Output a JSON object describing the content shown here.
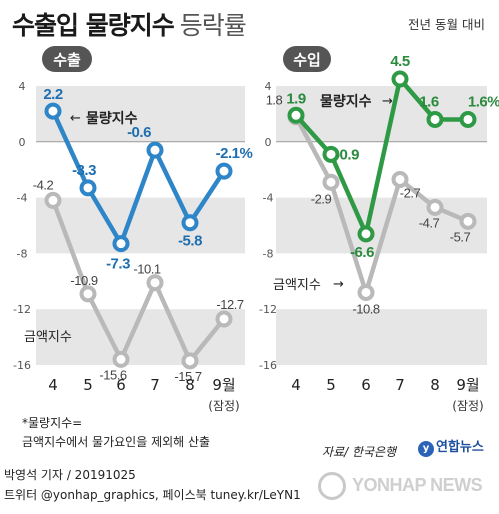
{
  "header": {
    "title": "수출입 물량지수",
    "subtitle": "등락률",
    "note": "전년 동월 대비"
  },
  "chart_data": [
    {
      "type": "line",
      "panel_label": "수출",
      "categories": [
        "4",
        "5",
        "6",
        "7",
        "8",
        "9월"
      ],
      "category_note": "(잠정)",
      "ylim": [
        -16,
        4
      ],
      "yticks": [
        "4",
        "0",
        "-4",
        "-8",
        "-12",
        "-16"
      ],
      "series": [
        {
          "name": "물량지수",
          "values": [
            2.2,
            -3.3,
            -7.3,
            -0.6,
            -5.8,
            -2.1
          ],
          "labels": [
            "2.2",
            "-3.3",
            "-7.3",
            "-0.6",
            "-5.8",
            "-2.1%"
          ],
          "color": "#2e86c8"
        },
        {
          "name": "금액지수",
          "values": [
            -4.2,
            -10.9,
            -15.6,
            -10.1,
            -15.7,
            -12.7
          ],
          "labels": [
            "-4.2",
            "-10.9",
            "-15.6",
            "-10.1",
            "-15.7",
            "-12.7"
          ],
          "color": "#b9b9b9"
        }
      ]
    },
    {
      "type": "line",
      "panel_label": "수입",
      "categories": [
        "4",
        "5",
        "6",
        "7",
        "8",
        "9월"
      ],
      "category_note": "(잠정)",
      "ylim": [
        -16,
        4
      ],
      "yticks": [
        "4",
        "0",
        "-4",
        "-8",
        "-12",
        "-16"
      ],
      "series": [
        {
          "name": "물량지수",
          "values": [
            1.9,
            -0.9,
            -6.6,
            4.5,
            1.6,
            1.6
          ],
          "labels": [
            "1.9",
            "-0.9",
            "-6.6",
            "4.5",
            "1.6",
            "1.6%"
          ],
          "color": "#2f9a45"
        },
        {
          "name": "금액지수",
          "values": [
            1.8,
            -2.9,
            -10.8,
            -2.7,
            -4.7,
            -5.7
          ],
          "labels": [
            "1.8",
            "-2.9",
            "-10.8",
            "-2.7",
            "-4.7",
            "-5.7"
          ],
          "color": "#b9b9b9"
        }
      ]
    }
  ],
  "footnote": {
    "line1": "*물량지수=",
    "line2": "금액지수에서 물가요인을 제외해 산출"
  },
  "source": "자료/ 한국은행",
  "logo_text": "연합뉴스",
  "byline": "박영석 기자 /  20191025",
  "social": "트위터 @yonhap_graphics, 페이스북 tuney.kr/LeYN1",
  "watermark": "YONHAP NEWS",
  "colors": {
    "band": "#e6e6e6",
    "export_accent": "#2e86c8",
    "import_accent": "#2f9a45",
    "gray": "#b9b9b9",
    "label_pill": "#555555"
  }
}
